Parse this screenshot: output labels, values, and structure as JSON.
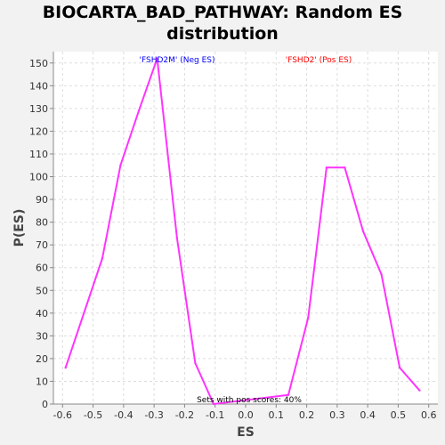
{
  "chart_data": {
    "type": "line",
    "title_line1": "BIOCARTA_BAD_PATHWAY: Random ES",
    "title_line2": "distribution",
    "xlabel": "ES",
    "ylabel": "P(ES)",
    "xlim": [
      -0.63,
      0.63
    ],
    "ylim": [
      0,
      155
    ],
    "x_ticks": [
      -0.6,
      -0.5,
      -0.4,
      -0.3,
      -0.2,
      -0.1,
      0.0,
      0.1,
      0.2,
      0.3,
      0.4,
      0.5,
      0.6
    ],
    "x_tick_labels": [
      "-0.6",
      "-0.5",
      "-0.4",
      "-0.3",
      "-0.2",
      "-0.1",
      "0.0",
      "0.1",
      "0.2",
      "0.3",
      "0.4",
      "0.5",
      "0.6"
    ],
    "y_ticks": [
      0,
      10,
      20,
      30,
      40,
      50,
      60,
      70,
      80,
      90,
      100,
      110,
      120,
      130,
      140,
      150
    ],
    "y_tick_labels": [
      "0",
      "10",
      "20",
      "30",
      "40",
      "50",
      "60",
      "70",
      "80",
      "90",
      "100",
      "110",
      "120",
      "130",
      "140",
      "150"
    ],
    "grid": true,
    "series": [
      {
        "color": "#ff33ff",
        "x": [
          -0.59,
          -0.47,
          -0.41,
          -0.35,
          -0.29,
          -0.225,
          -0.165,
          -0.105,
          0.14,
          0.205,
          0.265,
          0.325,
          0.385,
          0.445,
          0.505,
          0.57
        ],
        "y": [
          16,
          64,
          105,
          129,
          152,
          73,
          18,
          0,
          4,
          38,
          104,
          104,
          76,
          57,
          16,
          6
        ]
      }
    ],
    "annotations": {
      "neg_label": "'FSHD2M' (Neg ES)",
      "pos_label": "'FSHD2' (Pos ES)",
      "pos_scores": "Sets with pos scores: 40%"
    },
    "colors": {
      "neg_label": "#0000ff",
      "pos_label": "#ff0000",
      "pos_scores": "#000000"
    }
  }
}
